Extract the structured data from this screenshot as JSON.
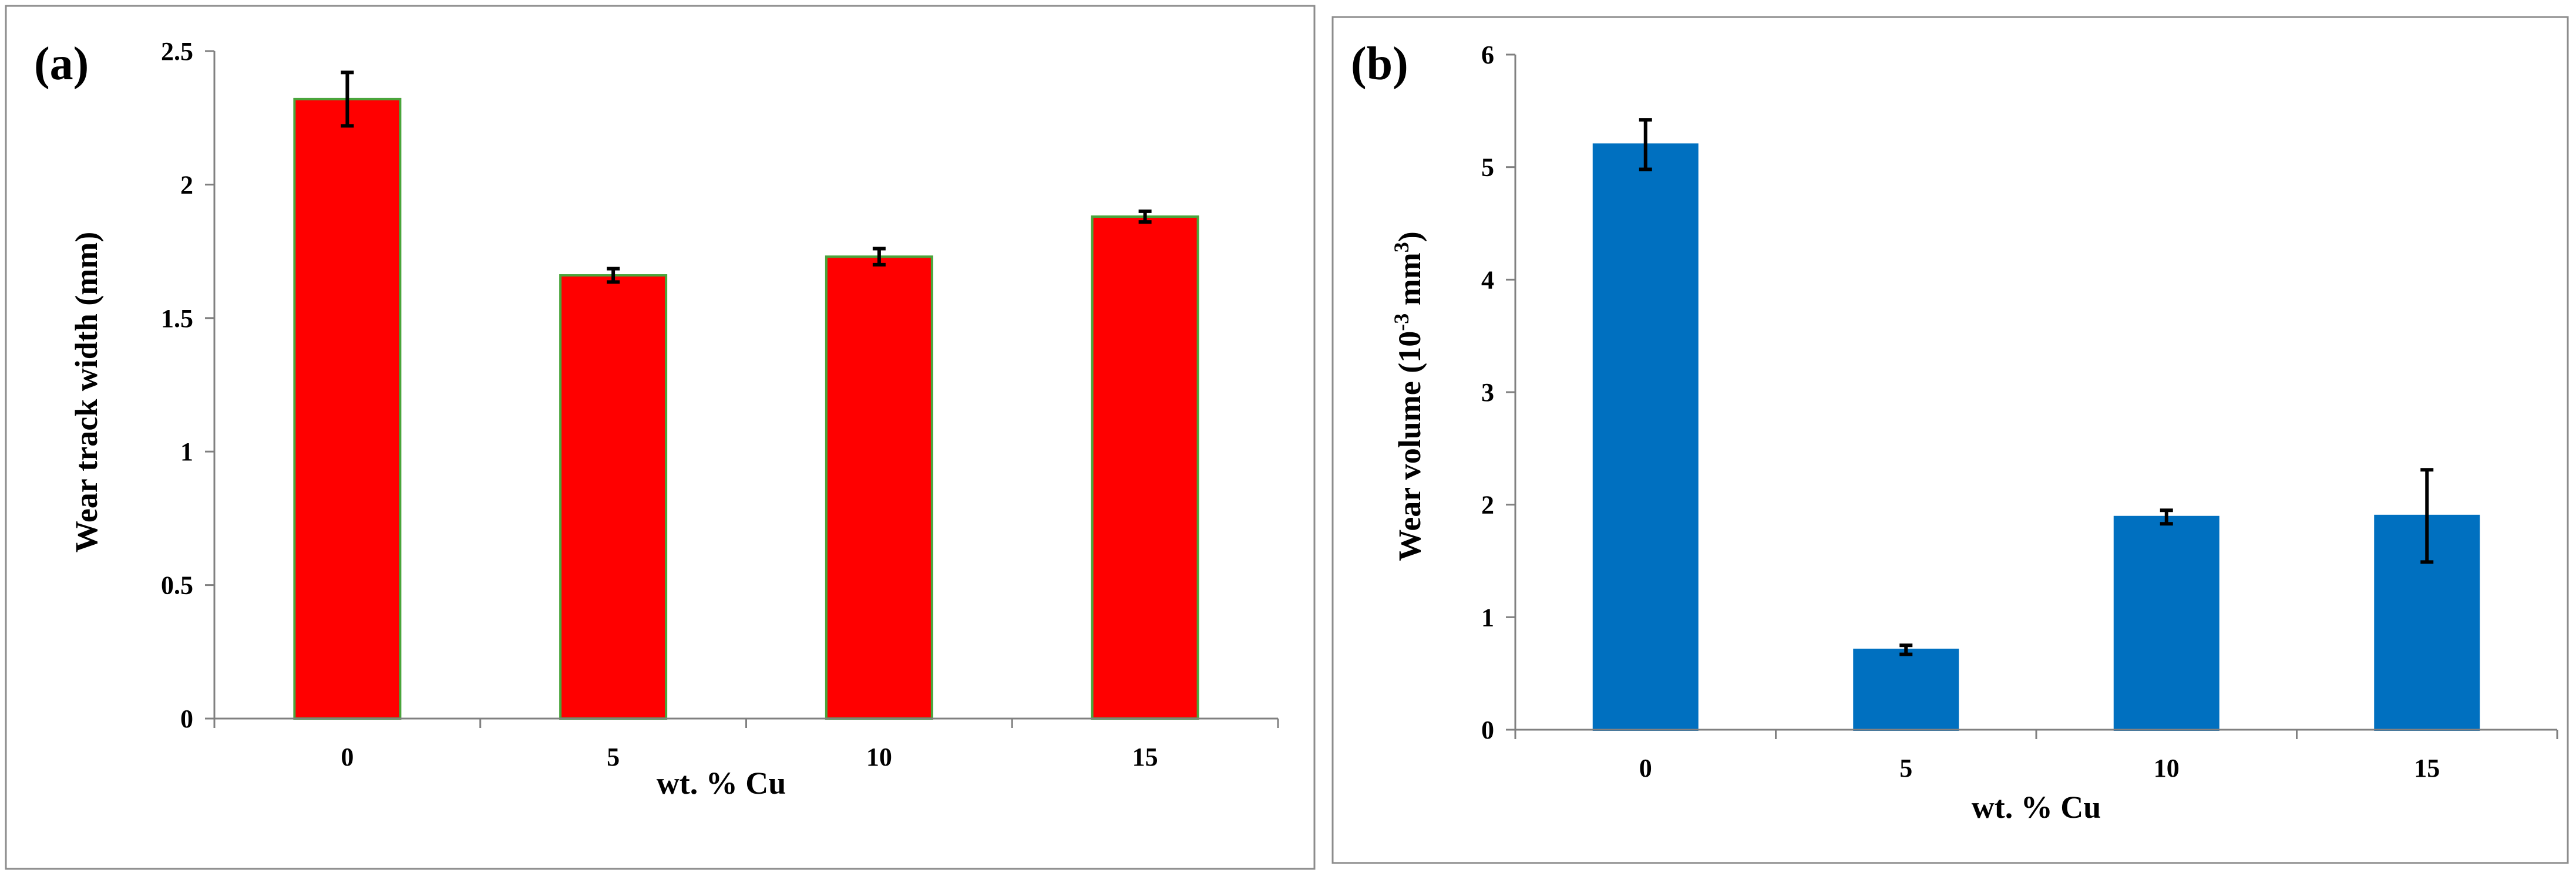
{
  "chart_data": [
    {
      "type": "bar",
      "panel_label": "(a)",
      "categories": [
        "0",
        "5",
        "10",
        "15"
      ],
      "values": [
        2.32,
        1.66,
        1.73,
        1.88
      ],
      "errors": [
        0.1,
        0.025,
        0.03,
        0.02
      ],
      "ylim": [
        0,
        2.5
      ],
      "yticks": [
        "0",
        "0.5",
        "1",
        "1.5",
        "2",
        "2.5"
      ],
      "ytick_values": [
        0,
        0.5,
        1,
        1.5,
        2,
        2.5
      ],
      "xlabel": "wt. % Cu",
      "ylabel": "Wear track width (mm)",
      "bar_color": "#ff0000",
      "bar_edge_color": "#4aa53c"
    },
    {
      "type": "bar",
      "panel_label": "(b)",
      "categories": [
        "0",
        "5",
        "10",
        "15"
      ],
      "values": [
        5.2,
        0.71,
        1.89,
        1.9
      ],
      "errors": [
        0.22,
        0.04,
        0.06,
        0.41
      ],
      "ylim": [
        0,
        6
      ],
      "yticks": [
        "0",
        "1",
        "2",
        "3",
        "4",
        "5",
        "6"
      ],
      "ytick_values": [
        0,
        1,
        2,
        3,
        4,
        5,
        6
      ],
      "xlabel": "wt. % Cu",
      "ylabel_main": "Wear volume (10",
      "ylabel_sup1": "-3",
      "ylabel_mid": " mm",
      "ylabel_sup2": "3",
      "ylabel_end": ")",
      "bar_color": "#0070c0",
      "bar_edge_color": "#0070c0"
    }
  ]
}
